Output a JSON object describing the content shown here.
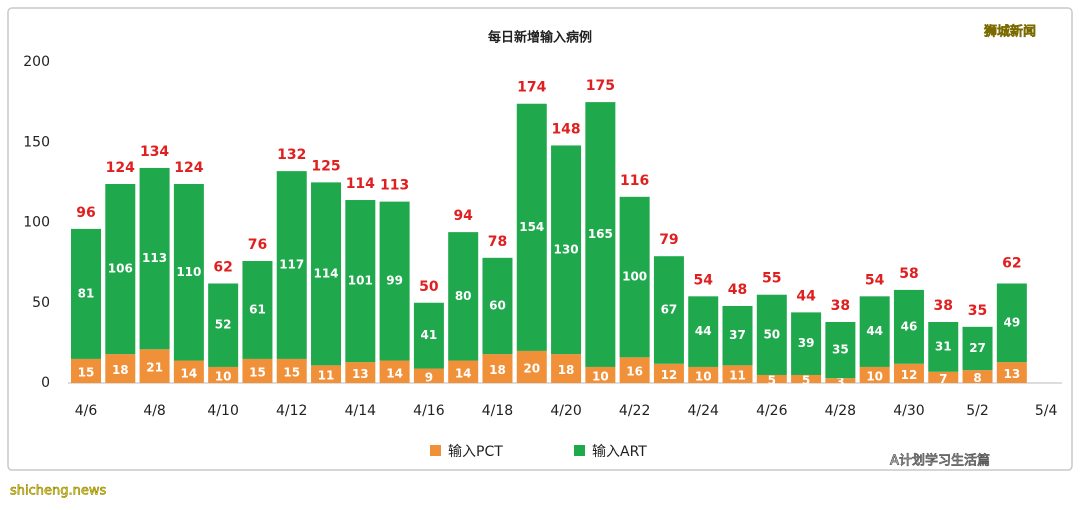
{
  "chart_data": {
    "type": "bar",
    "stacked": true,
    "title": "每日新增输入病例",
    "categories": [
      "4/6",
      null,
      "4/8",
      null,
      "4/10",
      null,
      "4/12",
      null,
      "4/14",
      null,
      "4/16",
      null,
      "4/18",
      null,
      "4/20",
      null,
      "4/22",
      null,
      "4/24",
      null,
      "4/26",
      null,
      "4/28",
      null,
      "4/30",
      null,
      "5/2",
      null,
      "5/4"
    ],
    "series": [
      {
        "name": "输入PCT",
        "color": "#f0913a",
        "values": [
          15,
          18,
          21,
          14,
          10,
          15,
          15,
          11,
          13,
          14,
          9,
          14,
          18,
          20,
          18,
          10,
          16,
          12,
          10,
          11,
          5,
          5,
          3,
          10,
          12,
          7,
          8,
          13,
          null
        ]
      },
      {
        "name": "输入ART",
        "color": "#1fa84c",
        "values": [
          81,
          106,
          113,
          110,
          52,
          61,
          117,
          114,
          101,
          99,
          41,
          80,
          60,
          154,
          130,
          165,
          100,
          67,
          44,
          37,
          50,
          39,
          35,
          44,
          46,
          31,
          27,
          49,
          null
        ]
      }
    ],
    "totals": [
      96,
      124,
      134,
      124,
      62,
      76,
      132,
      125,
      114,
      113,
      50,
      94,
      78,
      174,
      148,
      175,
      116,
      79,
      54,
      48,
      55,
      44,
      38,
      54,
      58,
      38,
      35,
      62,
      null
    ],
    "ylim": [
      0,
      200
    ],
    "yticks": [
      0,
      50,
      100,
      150,
      200
    ],
    "grid": false,
    "legend": "bottom",
    "watermarks": [
      "狮城新闻",
      "A计划学习生活篇",
      "shicheng.news"
    ]
  }
}
